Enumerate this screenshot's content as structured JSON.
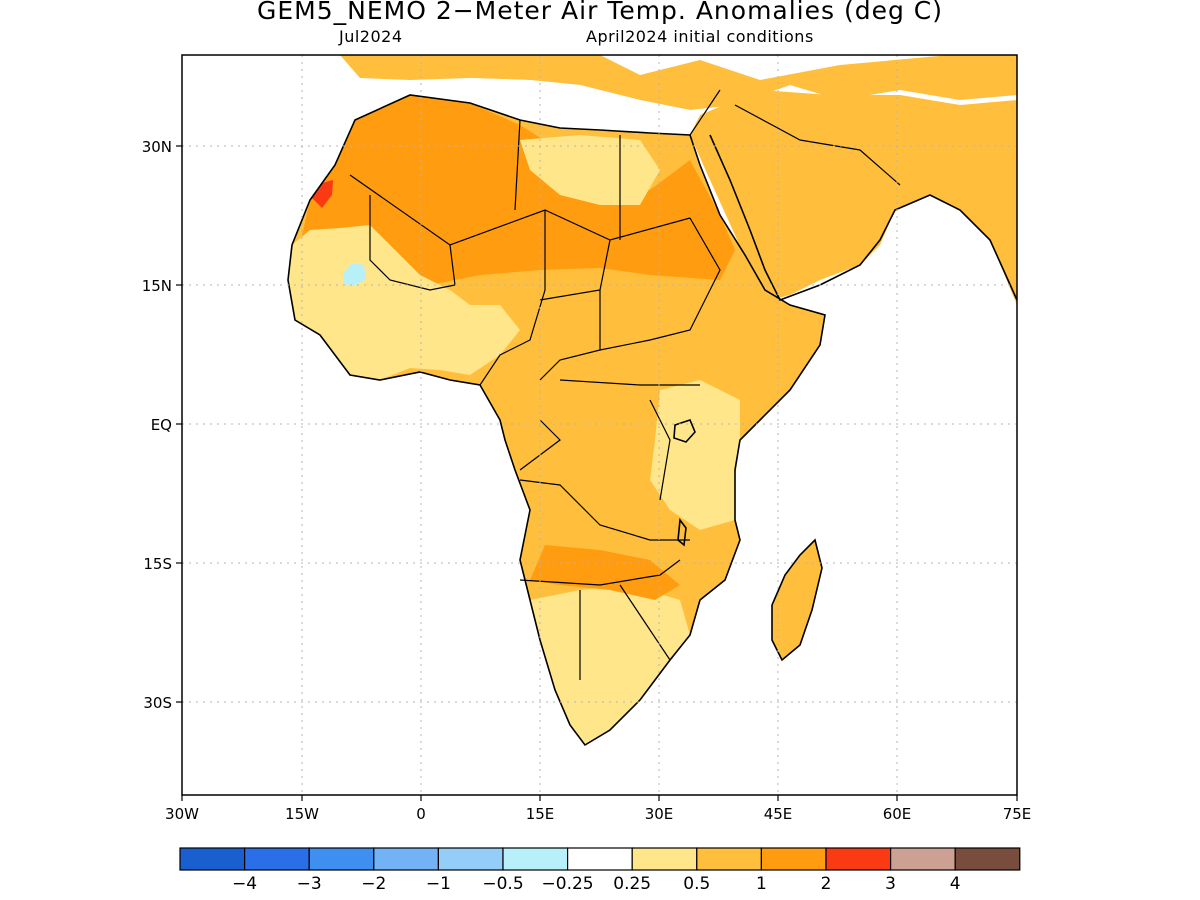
{
  "title": "GEM5_NEMO 2−Meter Air Temp. Anomalies (deg C)",
  "subtitle_left": "Jul2024",
  "subtitle_right": "April2024 initial conditions",
  "lat_ticks": [
    "30N",
    "15N",
    "EQ",
    "15S",
    "30S"
  ],
  "lon_ticks": [
    "30W",
    "15W",
    "0",
    "15E",
    "30E",
    "45E",
    "60E",
    "75E"
  ],
  "colorbar": {
    "colors": [
      "#1a5fcf",
      "#2a6ee8",
      "#3f8ff0",
      "#72b2f5",
      "#94cdf7",
      "#b7f0f8",
      "#ffffff",
      "#ffe68a",
      "#ffbf3c",
      "#ff9c0f",
      "#f93a12",
      "#cca193",
      "#784d3e"
    ],
    "labels": [
      "−4",
      "−3",
      "−2",
      "−1",
      "−0.5",
      "−0.25",
      "0.25",
      "0.5",
      "1",
      "2",
      "3",
      "4"
    ]
  },
  "region_colors": {
    "ocean": "#ffffff",
    "mediterranean": "#ffffff",
    "north_africa": "#ffbf3c",
    "sahara": "#ff9c0f",
    "sahel": "#ffe68a",
    "central": "#ffbf3c",
    "southern": "#ffe68a",
    "hot_spot": "#f93a12",
    "cool_spot": "#b7f0f8",
    "coast": "#000000"
  }
}
